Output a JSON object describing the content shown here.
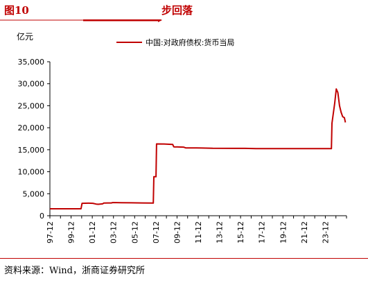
{
  "header": {
    "figure_number": "图10",
    "title": "步回落"
  },
  "footer": {
    "source": "资料来源：Wind，浙商证券研究所"
  },
  "chart_data": {
    "type": "line",
    "title": "",
    "ylabel": "亿元",
    "xlabel": "",
    "ylim": [
      0,
      35000
    ],
    "yticks": [
      0,
      5000,
      10000,
      15000,
      20000,
      25000,
      30000,
      35000
    ],
    "ytick_labels": [
      "0",
      "5,000",
      "10,000",
      "15,000",
      "20,000",
      "25,000",
      "30,000",
      "35,000"
    ],
    "xlim": [
      1997.92,
      2025.4
    ],
    "xtick_labels": [
      "97-12",
      "99-12",
      "01-12",
      "03-12",
      "05-12",
      "07-12",
      "09-12",
      "11-12",
      "13-12",
      "15-12",
      "17-12",
      "19-12",
      "21-12",
      "23-12"
    ],
    "grid": false,
    "legend_position": "top-center",
    "series": [
      {
        "name": "中国:对政府债权:货币当局",
        "color": "#c00000",
        "points": [
          [
            1997.92,
            1583
          ],
          [
            2000.8,
            1583
          ],
          [
            2000.9,
            2821
          ],
          [
            2001.5,
            2850
          ],
          [
            2001.9,
            2821
          ],
          [
            2002.2,
            2650
          ],
          [
            2002.4,
            2600
          ],
          [
            2002.8,
            2700
          ],
          [
            2002.9,
            2863
          ],
          [
            2003.3,
            2901
          ],
          [
            2003.6,
            2901
          ],
          [
            2003.75,
            3000
          ],
          [
            2004.5,
            2970
          ],
          [
            2005.5,
            2930
          ],
          [
            2006.5,
            2900
          ],
          [
            2007.5,
            2863
          ],
          [
            2007.55,
            8863
          ],
          [
            2007.75,
            8863
          ],
          [
            2007.8,
            16317
          ],
          [
            2008.5,
            16300
          ],
          [
            2009.3,
            16196
          ],
          [
            2009.4,
            15660
          ],
          [
            2010.3,
            15600
          ],
          [
            2010.5,
            15420
          ],
          [
            2011.5,
            15400
          ],
          [
            2012.0,
            15380
          ],
          [
            2013.0,
            15330
          ],
          [
            2015.0,
            15310
          ],
          [
            2016.0,
            15313
          ],
          [
            2017.0,
            15250
          ],
          [
            2018.0,
            15250
          ],
          [
            2019.0,
            15250
          ],
          [
            2020.0,
            15250
          ],
          [
            2021.0,
            15240
          ],
          [
            2022.0,
            15240
          ],
          [
            2023.0,
            15240
          ],
          [
            2024.0,
            15240
          ],
          [
            2024.05,
            21000
          ],
          [
            2024.3,
            25500
          ],
          [
            2024.45,
            28800
          ],
          [
            2024.6,
            28000
          ],
          [
            2024.75,
            25000
          ],
          [
            2024.9,
            23500
          ],
          [
            2025.05,
            22500
          ],
          [
            2025.2,
            22300
          ],
          [
            2025.3,
            21200
          ]
        ]
      }
    ]
  }
}
